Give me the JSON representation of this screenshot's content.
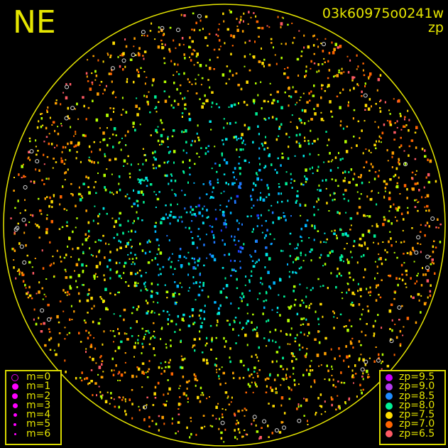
{
  "chart_data": {
    "type": "scatter",
    "corner_label": "NE",
    "title": "03k60975o0241w",
    "subtitle": "zp",
    "color_scale": "zp",
    "size_legend": [
      {
        "label": "m=0",
        "hollow": true
      },
      {
        "label": "m=1"
      },
      {
        "label": "m=2"
      },
      {
        "label": "m=3"
      },
      {
        "label": "m=4"
      },
      {
        "label": "m=5"
      },
      {
        "label": "m=6"
      }
    ],
    "color_legend": [
      {
        "label": "zp=9.5",
        "color": "#c800ff"
      },
      {
        "label": "zp=9.0",
        "color": "#b43cf0"
      },
      {
        "label": "zp=8.5",
        "color": "#1e8cff"
      },
      {
        "label": "zp=8.0",
        "color": "#00f096"
      },
      {
        "label": "zp=7.5",
        "color": "#ffdc00"
      },
      {
        "label": "zp=7.0",
        "color": "#ff6400"
      },
      {
        "label": "zp=6.5",
        "color": "#ff5a64"
      }
    ],
    "horizon_color": "#e6e600",
    "legend_color": "#e6e600"
  }
}
